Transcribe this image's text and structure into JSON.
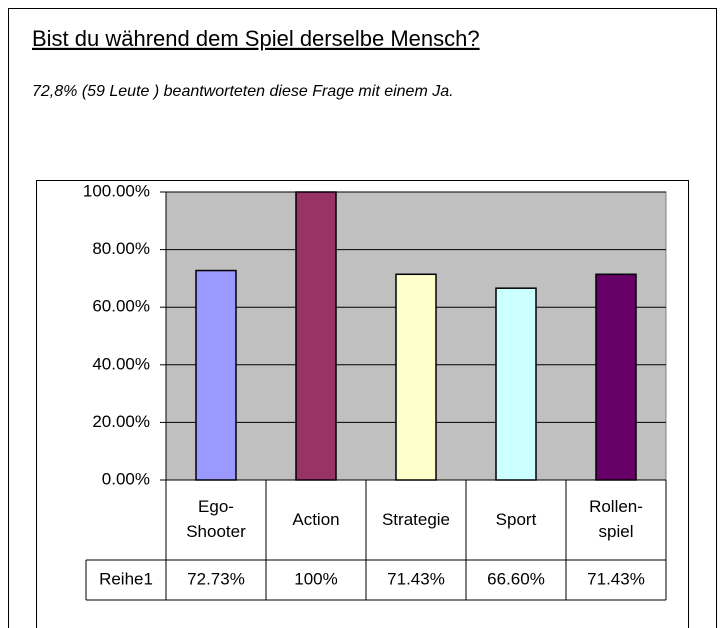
{
  "header": {
    "title": "Bist du während dem Spiel derselbe Mensch?",
    "subtitle": "72,8% (59 Leute ) beantworteten diese Frage mit einem Ja."
  },
  "chart_data": {
    "type": "bar",
    "categories": [
      "Ego-Shooter",
      "Action",
      "Strategie",
      "Sport",
      "Rollen-spiel"
    ],
    "series": [
      {
        "name": "Reihe1",
        "colors": [
          "#9999ff",
          "#993366",
          "#ffffcc",
          "#ccffff",
          "#660066"
        ],
        "values": [
          72.73,
          100,
          71.43,
          66.6,
          71.43
        ],
        "value_labels": [
          "72.73%",
          "100%",
          "71.43%",
          "66.60%",
          "71.43%"
        ]
      }
    ],
    "ylim": [
      0,
      100
    ],
    "yticks": [
      {
        "value": 0,
        "label": "0.00%"
      },
      {
        "value": 20,
        "label": "20.00%"
      },
      {
        "value": 40,
        "label": "40.00%"
      },
      {
        "value": 60,
        "label": "60.00%"
      },
      {
        "value": 80,
        "label": "80.00%"
      },
      {
        "value": 100,
        "label": "100.00%"
      }
    ],
    "grid": true,
    "plot_background": "#c0c0c0"
  }
}
